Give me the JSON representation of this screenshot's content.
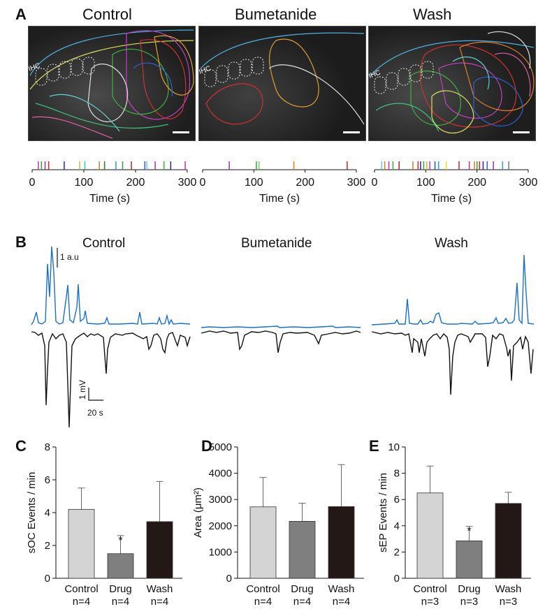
{
  "panel_letters": {
    "a": "A",
    "b": "B",
    "c": "C",
    "d": "D",
    "e": "E"
  },
  "conditions": [
    "Control",
    "Bumetanide",
    "Wash"
  ],
  "micrographs": [
    {
      "label": "IHC"
    },
    {
      "label": "IHC"
    },
    {
      "label": "IHC"
    }
  ],
  "rasters": [
    {
      "x_ticks": [
        "0",
        "100",
        "200",
        "300"
      ],
      "xlabel": "Time (s)",
      "events": [
        {
          "t": 12,
          "c": "#c040c0"
        },
        {
          "t": 18,
          "c": "#40a040"
        },
        {
          "t": 25,
          "c": "#a040a0"
        },
        {
          "t": 32,
          "c": "#d03030"
        },
        {
          "t": 62,
          "c": "#3030c0"
        },
        {
          "t": 92,
          "c": "#c0c040"
        },
        {
          "t": 102,
          "c": "#40c0c0"
        },
        {
          "t": 130,
          "c": "#e08030"
        },
        {
          "t": 140,
          "c": "#308030"
        },
        {
          "t": 162,
          "c": "#30a0d0"
        },
        {
          "t": 175,
          "c": "#40a060"
        },
        {
          "t": 192,
          "c": "#c03030"
        },
        {
          "t": 218,
          "c": "#4060c0"
        },
        {
          "t": 222,
          "c": "#80c0e0"
        },
        {
          "t": 238,
          "c": "#c04080"
        },
        {
          "t": 255,
          "c": "#40b040"
        },
        {
          "t": 268,
          "c": "#3030a0"
        },
        {
          "t": 296,
          "c": "#c040c0"
        }
      ]
    },
    {
      "x_ticks": [
        "0",
        "100",
        "200",
        "300"
      ],
      "xlabel": "Time (s)",
      "events": [
        {
          "t": 52,
          "c": "#a040c0"
        },
        {
          "t": 105,
          "c": "#40b040"
        },
        {
          "t": 110,
          "c": "#80c080"
        },
        {
          "t": 178,
          "c": "#e08030"
        },
        {
          "t": 282,
          "c": "#c03030"
        }
      ]
    },
    {
      "x_ticks": [
        "0",
        "100",
        "200",
        "300"
      ],
      "xlabel": "Time (s)",
      "events": [
        {
          "t": 14,
          "c": "#80c0e0"
        },
        {
          "t": 20,
          "c": "#e08030"
        },
        {
          "t": 28,
          "c": "#c040c0"
        },
        {
          "t": 36,
          "c": "#40b040"
        },
        {
          "t": 48,
          "c": "#c03030"
        },
        {
          "t": 75,
          "c": "#e08030"
        },
        {
          "t": 85,
          "c": "#d03030"
        },
        {
          "t": 90,
          "c": "#3030c0"
        },
        {
          "t": 96,
          "c": "#40a040"
        },
        {
          "t": 102,
          "c": "#c0c040"
        },
        {
          "t": 108,
          "c": "#c040c0"
        },
        {
          "t": 118,
          "c": "#3060c0"
        },
        {
          "t": 125,
          "c": "#30a0d0"
        },
        {
          "t": 140,
          "c": "#e0e040"
        },
        {
          "t": 165,
          "c": "#c03030"
        },
        {
          "t": 185,
          "c": "#c04080"
        },
        {
          "t": 195,
          "c": "#e08030"
        },
        {
          "t": 200,
          "c": "#40a040"
        },
        {
          "t": 205,
          "c": "#c03030"
        },
        {
          "t": 212,
          "c": "#3030a0"
        },
        {
          "t": 220,
          "c": "#4060c0"
        },
        {
          "t": 232,
          "c": "#a040a0"
        },
        {
          "t": 250,
          "c": "#40a0c0"
        },
        {
          "t": 262,
          "c": "#808080"
        }
      ]
    }
  ],
  "traces": {
    "titles": [
      "Control",
      "Bumetanide",
      "Wash"
    ],
    "scale_au": "1 a.u",
    "scale_mv": "1 mV",
    "scale_time": "20 s",
    "optical_color": "#1a6fc9",
    "electrical_color": "#111111"
  },
  "bar_charts": [
    {
      "key": "C",
      "ylabel": "sOC Events / min",
      "ylim": [
        0,
        8
      ],
      "yticks": [
        "0",
        "2",
        "4",
        "6",
        "8"
      ],
      "categories": [
        {
          "name": "Control",
          "n": "n=4"
        },
        {
          "name": "Drug",
          "n": "n=4"
        },
        {
          "name": "Wash",
          "n": "n=4"
        }
      ],
      "values": [
        4.2,
        1.5,
        3.45
      ],
      "errors": [
        1.3,
        1.1,
        2.45
      ],
      "significance": [
        "",
        "*",
        ""
      ],
      "colors": [
        "#d4d4d4",
        "#7f7f7f",
        "#231815"
      ]
    },
    {
      "key": "D",
      "ylabel": "Area (μm²)",
      "ylim": [
        0,
        5000
      ],
      "yticks": [
        "0",
        "1000",
        "2000",
        "3000",
        "4000",
        "5000"
      ],
      "categories": [
        {
          "name": "Control",
          "n": "n=4"
        },
        {
          "name": "Drug",
          "n": "n=4"
        },
        {
          "name": "Wash",
          "n": "n=4"
        }
      ],
      "values": [
        2720,
        2170,
        2730
      ],
      "errors": [
        1120,
        690,
        1600
      ],
      "significance": [
        "",
        "",
        ""
      ],
      "colors": [
        "#d4d4d4",
        "#7f7f7f",
        "#231815"
      ]
    },
    {
      "key": "E",
      "ylabel": "sEP Events / min",
      "ylim": [
        0,
        10
      ],
      "yticks": [
        "0",
        "2",
        "4",
        "6",
        "8",
        "10"
      ],
      "categories": [
        {
          "name": "Control",
          "n": "n=3"
        },
        {
          "name": "Drug",
          "n": "n=3"
        },
        {
          "name": "Wash",
          "n": "n=3"
        }
      ],
      "values": [
        6.5,
        2.85,
        5.7
      ],
      "errors": [
        2.05,
        1.1,
        0.85
      ],
      "significance": [
        "",
        "*",
        ""
      ],
      "colors": [
        "#d4d4d4",
        "#7f7f7f",
        "#231815"
      ]
    }
  ],
  "chart_data": [
    {
      "type": "bar",
      "title": "",
      "ylabel": "sOC Events / min",
      "ylim": [
        0,
        8
      ],
      "categories": [
        "Control",
        "Drug",
        "Wash"
      ],
      "values": [
        4.2,
        1.5,
        3.45
      ],
      "errors": [
        1.3,
        1.1,
        2.45
      ]
    },
    {
      "type": "bar",
      "title": "",
      "ylabel": "Area (μm²)",
      "ylim": [
        0,
        5000
      ],
      "categories": [
        "Control",
        "Drug",
        "Wash"
      ],
      "values": [
        2720,
        2170,
        2730
      ],
      "errors": [
        1120,
        690,
        1600
      ]
    },
    {
      "type": "bar",
      "title": "",
      "ylabel": "sEP Events / min",
      "ylim": [
        0,
        10
      ],
      "categories": [
        "Control",
        "Drug",
        "Wash"
      ],
      "values": [
        6.5,
        2.85,
        5.7
      ],
      "errors": [
        2.05,
        1.1,
        0.85
      ]
    }
  ]
}
